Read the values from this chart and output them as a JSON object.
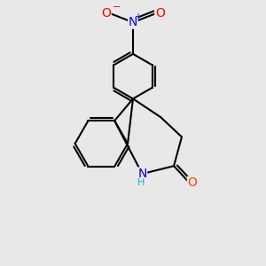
{
  "bg_color": "#e8e8e8",
  "bond_color": "#000000",
  "bond_width": 1.5,
  "atom_colors": {
    "N_nitro": "#0000ff",
    "O": "#ff0000",
    "N_amide": "#0000cd",
    "O_amide": "#ff4500",
    "H": "#20b2aa",
    "C": "#000000"
  },
  "font_size_atoms": 10,
  "font_size_small": 8
}
